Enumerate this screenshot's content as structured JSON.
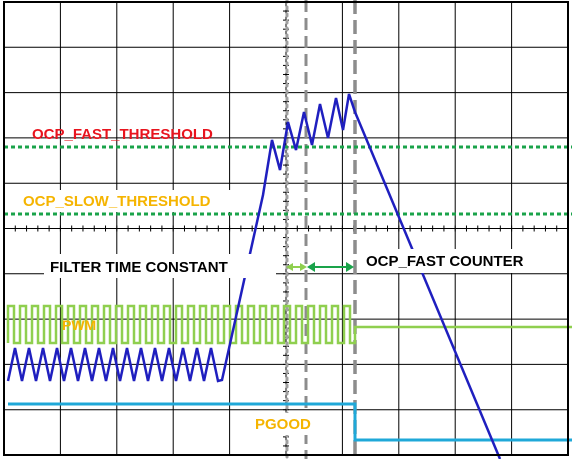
{
  "labels": {
    "ocp_fast_threshold": "OCP_FAST_THRESHOLD",
    "ocp_slow_threshold": "OCP_SLOW_THRESHOLD",
    "filter_time_constant": "FILTER TIME CONSTANT",
    "ocp_fast_counter": "OCP_FAST COUNTER",
    "pwm": "PWM",
    "pgood": "PGOOD"
  },
  "colors": {
    "grid": "#000000",
    "current_trace": "#1f1fbf",
    "thresholds": "#1aa34a",
    "ocp_fast_label": "#e8141e",
    "ocp_slow_label": "#f5b400",
    "pwm_trace": "#8fcf4f",
    "pgood_trace": "#1fa8d8",
    "pgood_label": "#f5b400",
    "filter_arrow": "#8fcf4f",
    "counter_arrow": "#1aa34a",
    "dotted_marker": "#a0a0a0",
    "dashed_marker": "#8c8c8c",
    "text_dark": "#000000"
  }
}
